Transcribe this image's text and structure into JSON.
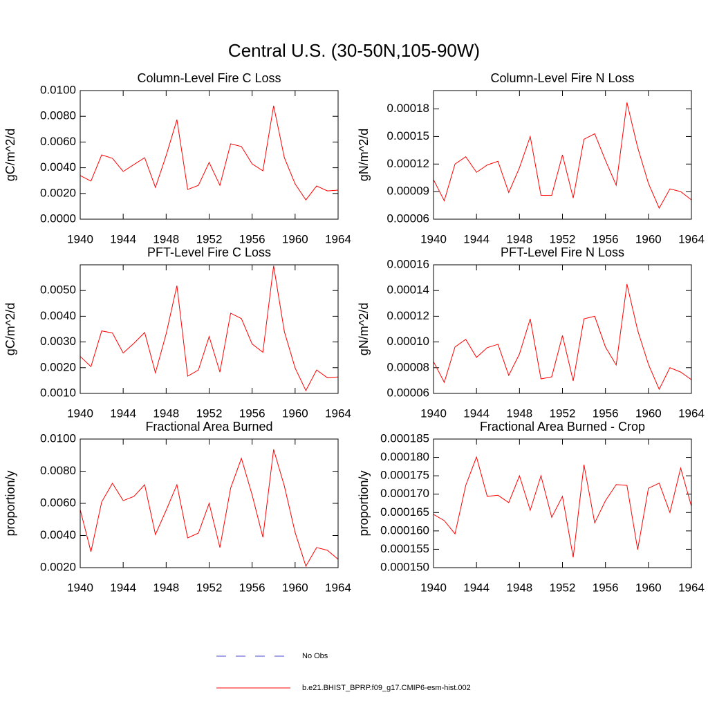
{
  "title": "Central U.S. (30-50N,105-90W)",
  "legend": [
    {
      "name": "No Obs",
      "color": "#4b4bd0",
      "dash": true
    },
    {
      "name": "b.e21.BHIST_BPRP.f09_g17.CMIP6-esm-hist.002",
      "color": "#ff0000",
      "dash": false
    }
  ],
  "chart_data": [
    {
      "type": "line",
      "title": "Column-Level Fire C Loss",
      "ylabel": "gC/m^2/d",
      "color": "#ff0000",
      "x": [
        1940,
        1941,
        1942,
        1943,
        1944,
        1945,
        1946,
        1947,
        1948,
        1949,
        1950,
        1951,
        1952,
        1953,
        1954,
        1955,
        1956,
        1957,
        1958,
        1959,
        1960,
        1961,
        1962,
        1963,
        1964
      ],
      "values": [
        0.00339,
        0.00296,
        0.005,
        0.00473,
        0.00371,
        0.00425,
        0.00478,
        0.00247,
        0.00495,
        0.00774,
        0.00231,
        0.00263,
        0.00441,
        0.00263,
        0.00586,
        0.00565,
        0.0043,
        0.00376,
        0.00882,
        0.00478,
        0.00274,
        0.0015,
        0.00258,
        0.0022,
        0.00226
      ],
      "xlim": [
        1940,
        1964
      ],
      "xticks": [
        1940,
        1944,
        1948,
        1952,
        1956,
        1960,
        1964
      ],
      "ylim": [
        0,
        0.01
      ],
      "yticks": [
        {
          "value": 0,
          "label": "0.0000"
        },
        {
          "value": 0.002,
          "label": "0.0020"
        },
        {
          "value": 0.004,
          "label": "0.0040"
        },
        {
          "value": 0.006,
          "label": "0.0060"
        },
        {
          "value": 0.008,
          "label": "0.0080"
        },
        {
          "value": 0.01,
          "label": "0.0100"
        }
      ]
    },
    {
      "type": "line",
      "title": "Column-Level Fire N Loss",
      "ylabel": "gN/m^2/d",
      "color": "#ff0000",
      "x": [
        1940,
        1941,
        1942,
        1943,
        1944,
        1945,
        1946,
        1947,
        1948,
        1949,
        1950,
        1951,
        1952,
        1953,
        1954,
        1955,
        1956,
        1957,
        1958,
        1959,
        1960,
        1961,
        1962,
        1963,
        1964
      ],
      "values": [
        0.000103,
        8e-05,
        0.00012,
        0.000128,
        0.000111,
        0.000119,
        0.000123,
        8.9e-05,
        0.000116,
        0.00015,
        8.6e-05,
        8.6e-05,
        0.00013,
        8.3e-05,
        0.000147,
        0.000153,
        0.000124,
        9.7e-05,
        0.000187,
        0.000138,
        9.9e-05,
        7.2e-05,
        9.3e-05,
        9e-05,
        8.1e-05
      ],
      "xlim": [
        1940,
        1964
      ],
      "xticks": [
        1940,
        1944,
        1948,
        1952,
        1956,
        1960,
        1964
      ],
      "ylim": [
        6e-05,
        0.0002
      ],
      "yticks": [
        6e-05,
        9e-05,
        0.00012,
        0.00015,
        0.00018
      ]
    },
    {
      "type": "line",
      "title": "PFT-Level Fire C Loss",
      "ylabel": "gC/m^2/d",
      "color": "#ff0000",
      "x": [
        1940,
        1941,
        1942,
        1943,
        1944,
        1945,
        1946,
        1947,
        1948,
        1949,
        1950,
        1951,
        1952,
        1953,
        1954,
        1955,
        1956,
        1957,
        1958,
        1959,
        1960,
        1961,
        1962,
        1963,
        1964
      ],
      "values": [
        0.00244,
        0.00204,
        0.00343,
        0.00335,
        0.00257,
        0.00295,
        0.00337,
        0.0018,
        0.00332,
        0.00519,
        0.00167,
        0.00191,
        0.00321,
        0.00183,
        0.00412,
        0.00391,
        0.00292,
        0.0026,
        0.00596,
        0.0034,
        0.00199,
        0.00111,
        0.00191,
        0.00161,
        0.00164
      ],
      "xlim": [
        1940,
        1964
      ],
      "xticks": [
        1940,
        1944,
        1948,
        1952,
        1956,
        1960,
        1964
      ],
      "ylim": [
        0.001,
        0.006
      ],
      "yticks": [
        {
          "value": 0.001,
          "label": "0.0010"
        },
        {
          "value": 0.002,
          "label": "0.0020"
        },
        {
          "value": 0.003,
          "label": "0.0030"
        },
        {
          "value": 0.004,
          "label": "0.0040"
        },
        {
          "value": 0.005,
          "label": "0.0050"
        }
      ]
    },
    {
      "type": "line",
      "title": "PFT-Level Fire N Loss",
      "ylabel": "gN/m^2/d",
      "color": "#ff0000",
      "x": [
        1940,
        1941,
        1942,
        1943,
        1944,
        1945,
        1946,
        1947,
        1948,
        1949,
        1950,
        1951,
        1952,
        1953,
        1954,
        1955,
        1956,
        1957,
        1958,
        1959,
        1960,
        1961,
        1962,
        1963,
        1964
      ],
      "values": [
        8.47e-05,
        6.86e-05,
        9.61e-05,
        0.000102,
        8.8e-05,
        9.56e-05,
        9.82e-05,
        7.4e-05,
        9.07e-05,
        0.000118,
        7.13e-05,
        7.29e-05,
        0.000105,
        6.97e-05,
        0.000118,
        0.00012,
        9.61e-05,
        8.21e-05,
        0.000145,
        0.000109,
        8.26e-05,
        6.32e-05,
        8e-05,
        7.66e-05,
        7.07e-05
      ],
      "xlim": [
        1940,
        1964
      ],
      "xticks": [
        1940,
        1944,
        1948,
        1952,
        1956,
        1960,
        1964
      ],
      "ylim": [
        6e-05,
        0.00016
      ],
      "yticks": [
        6e-05,
        8e-05,
        {
          "value": 0.0001,
          "label": "0.00010"
        },
        0.00012,
        0.00014,
        0.00016
      ]
    },
    {
      "type": "line",
      "title": "Fractional Area Burned",
      "ylabel": "proportion/y",
      "color": "#ff0000",
      "x": [
        1940,
        1941,
        1942,
        1943,
        1944,
        1945,
        1946,
        1947,
        1948,
        1949,
        1950,
        1951,
        1952,
        1953,
        1954,
        1955,
        1956,
        1957,
        1958,
        1959,
        1960,
        1961,
        1962,
        1963,
        1964
      ],
      "values": [
        0.00561,
        0.00299,
        0.00609,
        0.00725,
        0.00617,
        0.00643,
        0.00716,
        0.00406,
        0.00557,
        0.00716,
        0.00385,
        0.00415,
        0.006,
        0.00325,
        0.00695,
        0.0088,
        0.00652,
        0.00389,
        0.00935,
        0.00707,
        0.00419,
        0.00209,
        0.00325,
        0.00308,
        0.00252
      ],
      "xlim": [
        1940,
        1964
      ],
      "xticks": [
        1940,
        1944,
        1948,
        1952,
        1956,
        1960,
        1964
      ],
      "ylim": [
        0.002,
        0.01
      ],
      "yticks": [
        {
          "value": 0.002,
          "label": "0.0020"
        },
        {
          "value": 0.004,
          "label": "0.0040"
        },
        {
          "value": 0.006,
          "label": "0.0060"
        },
        {
          "value": 0.008,
          "label": "0.0080"
        },
        {
          "value": 0.01,
          "label": "0.0100"
        }
      ]
    },
    {
      "type": "line",
      "title": "Fractional Area Burned - Crop",
      "ylabel": "proportion/y",
      "color": "#ff0000",
      "x": [
        1940,
        1941,
        1942,
        1943,
        1944,
        1945,
        1946,
        1947,
        1948,
        1949,
        1950,
        1951,
        1952,
        1953,
        1954,
        1955,
        1956,
        1957,
        1958,
        1959,
        1960,
        1961,
        1962,
        1963,
        1964
      ],
      "values": [
        0.0001645,
        0.0001628,
        0.0001592,
        0.0001724,
        0.0001801,
        0.0001694,
        0.0001697,
        0.0001677,
        0.000175,
        0.0001656,
        0.000175,
        0.0001637,
        0.0001694,
        0.0001528,
        0.000178,
        0.0001622,
        0.0001682,
        0.0001726,
        0.0001724,
        0.0001549,
        0.0001716,
        0.000173,
        0.000165,
        0.0001771,
        0.0001667
      ],
      "xlim": [
        1940,
        1964
      ],
      "xticks": [
        1940,
        1944,
        1948,
        1952,
        1956,
        1960,
        1964
      ],
      "ylim": [
        0.00015,
        0.000185
      ],
      "yticks": [
        {
          "value": 0.00015,
          "label": "0.000150"
        },
        {
          "value": 0.000155,
          "label": "0.000155"
        },
        {
          "value": 0.00016,
          "label": "0.000160"
        },
        {
          "value": 0.000165,
          "label": "0.000165"
        },
        {
          "value": 0.00017,
          "label": "0.000170"
        },
        {
          "value": 0.000175,
          "label": "0.000175"
        },
        {
          "value": 0.00018,
          "label": "0.000180"
        },
        {
          "value": 0.000185,
          "label": "0.000185"
        }
      ]
    }
  ]
}
